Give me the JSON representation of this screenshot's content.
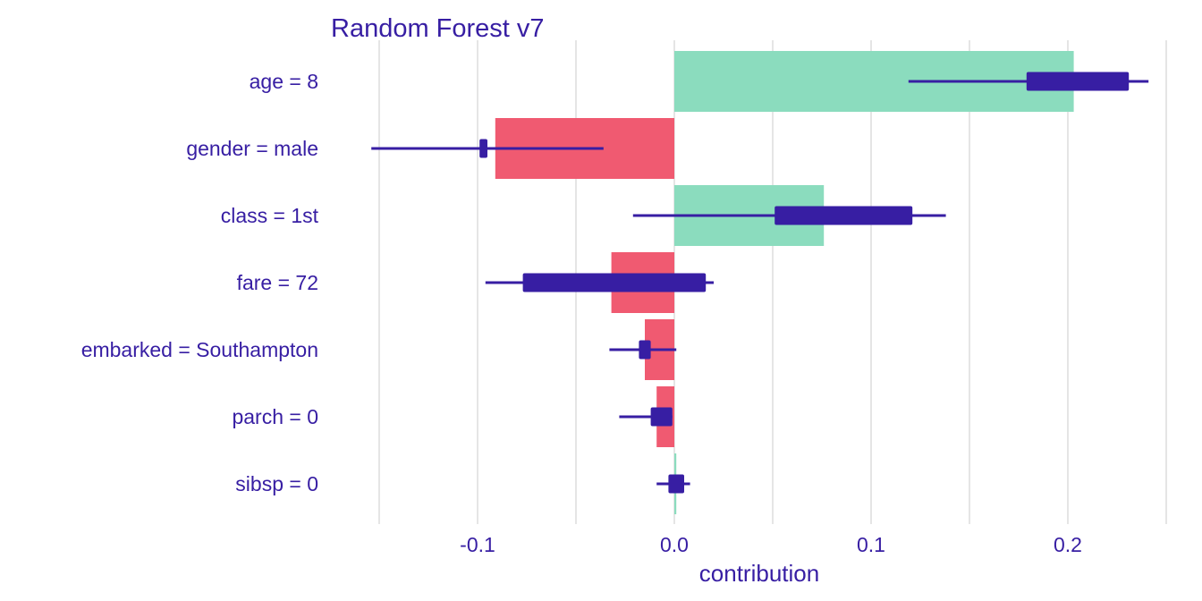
{
  "chart_data": {
    "type": "bar",
    "title": "Random Forest v7",
    "xlabel": "contribution",
    "ylabel": "",
    "xlim": [
      -0.15,
      0.25
    ],
    "xticks": [
      -0.1,
      0.0,
      0.1,
      0.2
    ],
    "xtick_labels": [
      "-0.1",
      "0.0",
      "0.1",
      "0.2"
    ],
    "grid": true,
    "categories": [
      "age = 8",
      "gender = male",
      "class = 1st",
      "fare = 72",
      "embarked = Southampton",
      "parch = 0",
      "sibsp = 0"
    ],
    "values": [
      0.203,
      -0.091,
      0.076,
      -0.032,
      -0.015,
      -0.009,
      0.001
    ],
    "boxplots": [
      {
        "min": 0.119,
        "q1": 0.179,
        "q3": 0.231,
        "max": 0.241
      },
      {
        "min": -0.154,
        "q1": -0.099,
        "q3": -0.095,
        "max": -0.036
      },
      {
        "min": -0.021,
        "q1": 0.051,
        "q3": 0.121,
        "max": 0.138
      },
      {
        "min": -0.096,
        "q1": -0.077,
        "q3": 0.016,
        "max": 0.02
      },
      {
        "min": -0.033,
        "q1": -0.018,
        "q3": -0.012,
        "max": 0.001
      },
      {
        "min": -0.028,
        "q1": -0.012,
        "q3": -0.001,
        "max": -0.001
      },
      {
        "min": -0.009,
        "q1": -0.003,
        "q3": 0.005,
        "max": 0.008
      }
    ],
    "colors": {
      "positive": "#8bdcbe",
      "negative": "#f05a71",
      "boxplot": "#371ea3",
      "text": "#371ea3",
      "grid": "#e5e5e5"
    }
  }
}
